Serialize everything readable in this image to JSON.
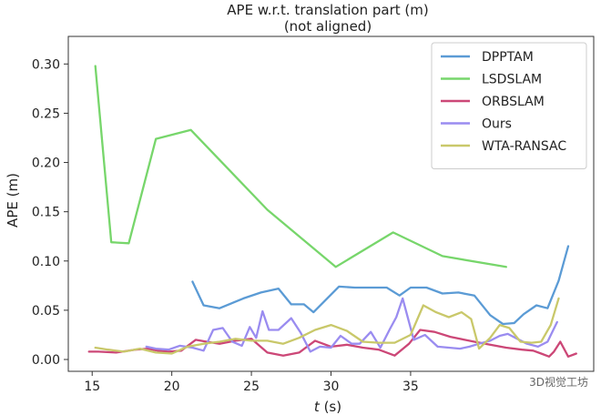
{
  "chart_data": {
    "type": "line",
    "title": "APE w.r.t. translation part (m)",
    "subtitle": "(not aligned)",
    "xlabel": "t (s)",
    "xlabel_var": "t",
    "xlabel_unit": "(s)",
    "ylabel": "APE (m)",
    "xlim": [
      13.5,
      46.5
    ],
    "ylim": [
      -0.012,
      0.328
    ],
    "xticks": [
      15,
      20,
      25,
      30,
      35
    ],
    "yticks": [
      0.0,
      0.05,
      0.1,
      0.15,
      0.2,
      0.25,
      0.3
    ],
    "grid": false,
    "legend_position": "top-right",
    "series": [
      {
        "name": "DPPTAM",
        "color": "#5b9bd5",
        "x": [
          21.3,
          22.0,
          23.0,
          24.5,
          25.6,
          26.7,
          27.5,
          28.3,
          28.9,
          30.5,
          31.5,
          32.5,
          33.5,
          34.3,
          35.0,
          36.0,
          37.0,
          38.0,
          39.0,
          40.0,
          40.8,
          41.5,
          42.1,
          42.9,
          43.6,
          44.3,
          44.9
        ],
        "y": [
          0.079,
          0.055,
          0.052,
          0.062,
          0.068,
          0.072,
          0.056,
          0.056,
          0.048,
          0.074,
          0.073,
          0.073,
          0.073,
          0.065,
          0.073,
          0.073,
          0.067,
          0.068,
          0.065,
          0.045,
          0.036,
          0.037,
          0.046,
          0.055,
          0.052,
          0.08,
          0.115
        ]
      },
      {
        "name": "LSDSLAM",
        "color": "#77d66b",
        "x": [
          15.2,
          16.2,
          17.3,
          19.0,
          21.2,
          26.0,
          30.3,
          33.9,
          37.0,
          41.0
        ],
        "y": [
          0.298,
          0.119,
          0.118,
          0.224,
          0.233,
          0.152,
          0.094,
          0.129,
          0.105,
          0.094
        ]
      },
      {
        "name": "ORBSLAM",
        "color": "#cc4777",
        "x": [
          14.8,
          15.4,
          16.5,
          17.7,
          18.5,
          19.1,
          19.8,
          20.6,
          21.5,
          22.2,
          23.0,
          24.0,
          25.0,
          26.0,
          27.0,
          28.0,
          29.0,
          30.0,
          31.0,
          32.0,
          33.0,
          34.0,
          34.9,
          35.6,
          36.5,
          37.5,
          38.4,
          39.0,
          40.0,
          41.0,
          42.0,
          42.7,
          43.2,
          43.7,
          44.0,
          44.4,
          44.9,
          45.4
        ],
        "y": [
          0.008,
          0.008,
          0.007,
          0.01,
          0.011,
          0.009,
          0.008,
          0.009,
          0.02,
          0.018,
          0.016,
          0.019,
          0.021,
          0.007,
          0.004,
          0.007,
          0.019,
          0.013,
          0.015,
          0.012,
          0.01,
          0.004,
          0.016,
          0.03,
          0.028,
          0.023,
          0.02,
          0.018,
          0.015,
          0.012,
          0.01,
          0.009,
          0.006,
          0.003,
          0.008,
          0.018,
          0.003,
          0.006
        ]
      },
      {
        "name": "Ours",
        "color": "#9a8cf0",
        "x": [
          18.4,
          19.0,
          19.8,
          20.5,
          21.3,
          22.0,
          22.6,
          23.2,
          23.8,
          24.4,
          24.9,
          25.3,
          25.7,
          26.1,
          26.7,
          27.5,
          28.1,
          28.7,
          29.3,
          30.0,
          30.6,
          31.3,
          31.8,
          32.5,
          33.1,
          33.7,
          34.1,
          34.5,
          35.2,
          35.9,
          36.7,
          37.4,
          38.1,
          38.7,
          39.3,
          40.0,
          40.6,
          41.1,
          41.7,
          42.3,
          43.0,
          43.6,
          44.2
        ],
        "y": [
          0.013,
          0.011,
          0.01,
          0.014,
          0.012,
          0.009,
          0.03,
          0.032,
          0.018,
          0.014,
          0.033,
          0.022,
          0.049,
          0.03,
          0.03,
          0.042,
          0.027,
          0.008,
          0.013,
          0.012,
          0.024,
          0.016,
          0.016,
          0.028,
          0.012,
          0.031,
          0.043,
          0.062,
          0.02,
          0.025,
          0.013,
          0.012,
          0.011,
          0.013,
          0.016,
          0.019,
          0.024,
          0.026,
          0.021,
          0.016,
          0.013,
          0.018,
          0.038
        ]
      },
      {
        "name": "WTA-RANSAC",
        "color": "#c9c86a",
        "x": [
          15.2,
          16.0,
          17.0,
          18.0,
          19.0,
          20.0,
          21.0,
          22.0,
          23.0,
          24.0,
          25.0,
          26.0,
          27.0,
          28.0,
          29.0,
          30.0,
          31.0,
          32.0,
          33.0,
          34.0,
          35.0,
          35.8,
          36.6,
          37.4,
          38.2,
          38.8,
          39.3,
          40.0,
          40.6,
          41.2,
          41.9,
          42.6,
          43.2,
          43.8,
          44.3
        ],
        "y": [
          0.012,
          0.01,
          0.008,
          0.011,
          0.007,
          0.006,
          0.013,
          0.016,
          0.018,
          0.021,
          0.019,
          0.019,
          0.016,
          0.022,
          0.03,
          0.035,
          0.029,
          0.018,
          0.017,
          0.017,
          0.025,
          0.055,
          0.048,
          0.043,
          0.048,
          0.041,
          0.011,
          0.022,
          0.035,
          0.032,
          0.018,
          0.017,
          0.018,
          0.035,
          0.062
        ]
      }
    ]
  },
  "watermark": "3D视觉工坊"
}
